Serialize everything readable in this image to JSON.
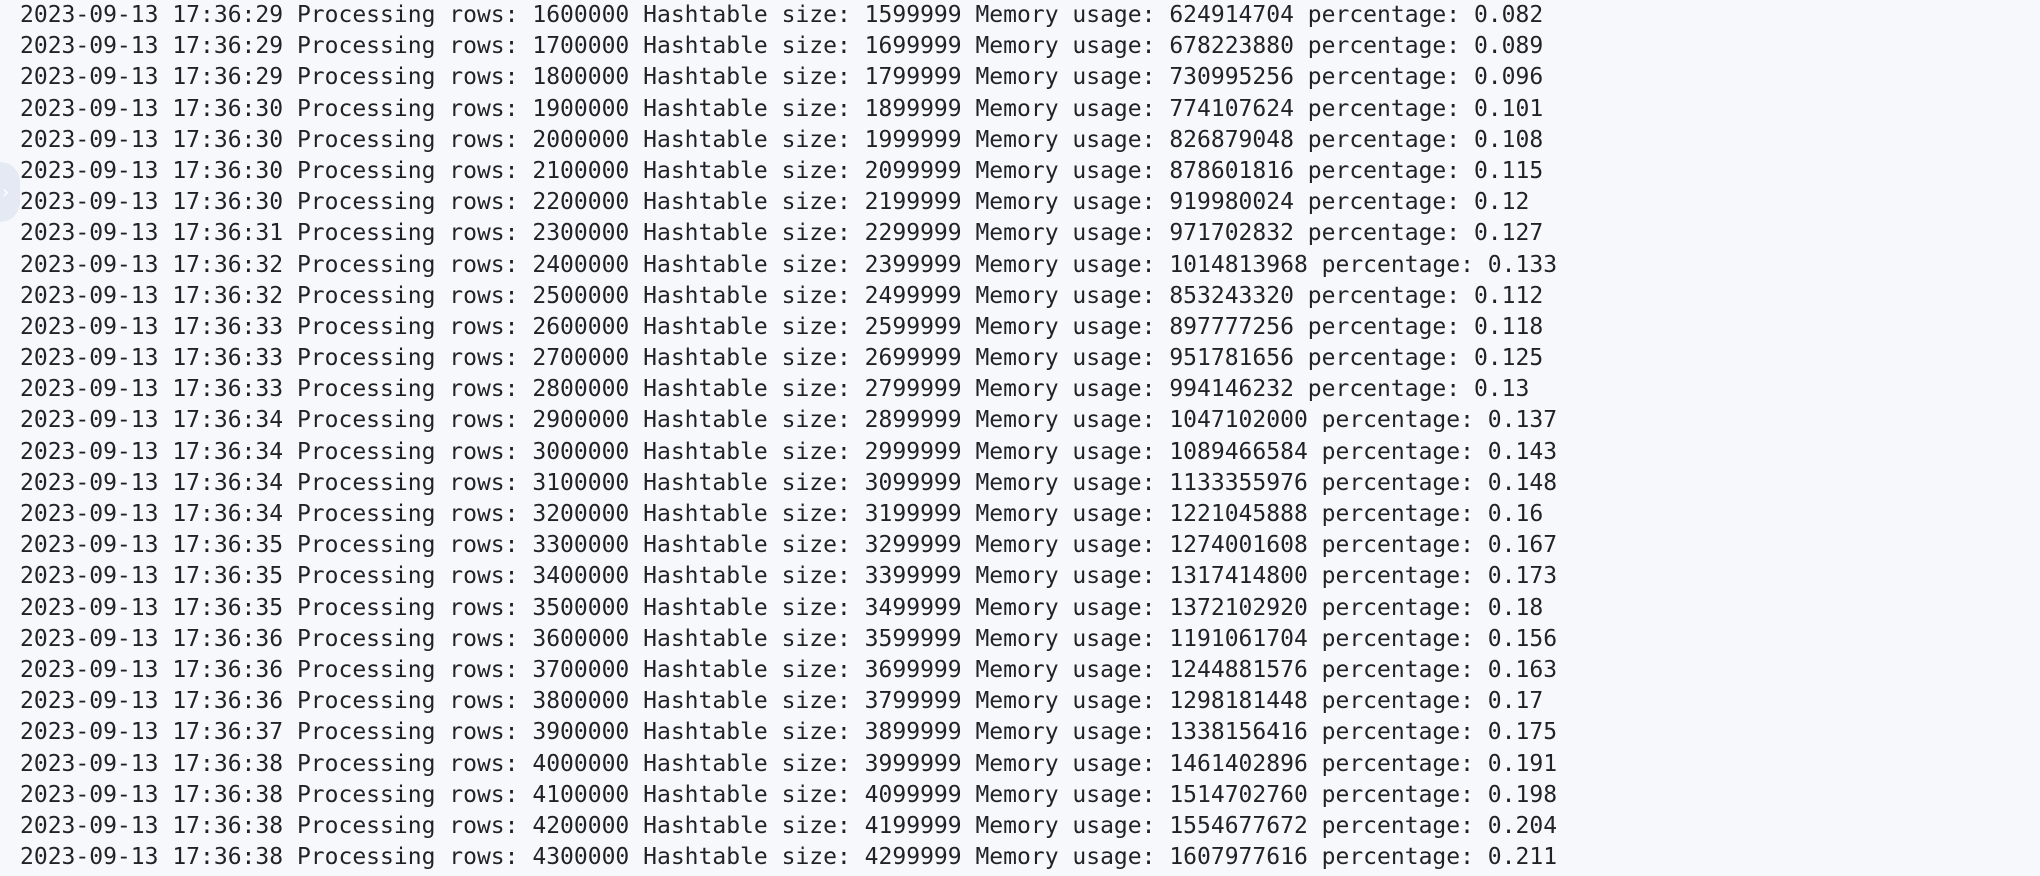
{
  "sidebar": {
    "toggle_icon": "chevron-right-icon",
    "toggle_glyph": "›"
  },
  "log": {
    "lines": [
      "2023-09-13 17:36:29 Processing rows: 1600000 Hashtable size: 1599999 Memory usage: 624914704 percentage: 0.082",
      "2023-09-13 17:36:29 Processing rows: 1700000 Hashtable size: 1699999 Memory usage: 678223880 percentage: 0.089",
      "2023-09-13 17:36:29 Processing rows: 1800000 Hashtable size: 1799999 Memory usage: 730995256 percentage: 0.096",
      "2023-09-13 17:36:30 Processing rows: 1900000 Hashtable size: 1899999 Memory usage: 774107624 percentage: 0.101",
      "2023-09-13 17:36:30 Processing rows: 2000000 Hashtable size: 1999999 Memory usage: 826879048 percentage: 0.108",
      "2023-09-13 17:36:30 Processing rows: 2100000 Hashtable size: 2099999 Memory usage: 878601816 percentage: 0.115",
      "2023-09-13 17:36:30 Processing rows: 2200000 Hashtable size: 2199999 Memory usage: 919980024 percentage: 0.12",
      "2023-09-13 17:36:31 Processing rows: 2300000 Hashtable size: 2299999 Memory usage: 971702832 percentage: 0.127",
      "2023-09-13 17:36:32 Processing rows: 2400000 Hashtable size: 2399999 Memory usage: 1014813968 percentage: 0.133",
      "2023-09-13 17:36:32 Processing rows: 2500000 Hashtable size: 2499999 Memory usage: 853243320 percentage: 0.112",
      "2023-09-13 17:36:33 Processing rows: 2600000 Hashtable size: 2599999 Memory usage: 897777256 percentage: 0.118",
      "2023-09-13 17:36:33 Processing rows: 2700000 Hashtable size: 2699999 Memory usage: 951781656 percentage: 0.125",
      "2023-09-13 17:36:33 Processing rows: 2800000 Hashtable size: 2799999 Memory usage: 994146232 percentage: 0.13",
      "2023-09-13 17:36:34 Processing rows: 2900000 Hashtable size: 2899999 Memory usage: 1047102000 percentage: 0.137",
      "2023-09-13 17:36:34 Processing rows: 3000000 Hashtable size: 2999999 Memory usage: 1089466584 percentage: 0.143",
      "2023-09-13 17:36:34 Processing rows: 3100000 Hashtable size: 3099999 Memory usage: 1133355976 percentage: 0.148",
      "2023-09-13 17:36:34 Processing rows: 3200000 Hashtable size: 3199999 Memory usage: 1221045888 percentage: 0.16",
      "2023-09-13 17:36:35 Processing rows: 3300000 Hashtable size: 3299999 Memory usage: 1274001608 percentage: 0.167",
      "2023-09-13 17:36:35 Processing rows: 3400000 Hashtable size: 3399999 Memory usage: 1317414800 percentage: 0.173",
      "2023-09-13 17:36:35 Processing rows: 3500000 Hashtable size: 3499999 Memory usage: 1372102920 percentage: 0.18",
      "2023-09-13 17:36:36 Processing rows: 3600000 Hashtable size: 3599999 Memory usage: 1191061704 percentage: 0.156",
      "2023-09-13 17:36:36 Processing rows: 3700000 Hashtable size: 3699999 Memory usage: 1244881576 percentage: 0.163",
      "2023-09-13 17:36:36 Processing rows: 3800000 Hashtable size: 3799999 Memory usage: 1298181448 percentage: 0.17",
      "2023-09-13 17:36:37 Processing rows: 3900000 Hashtable size: 3899999 Memory usage: 1338156416 percentage: 0.175",
      "2023-09-13 17:36:38 Processing rows: 4000000 Hashtable size: 3999999 Memory usage: 1461402896 percentage: 0.191",
      "2023-09-13 17:36:38 Processing rows: 4100000 Hashtable size: 4099999 Memory usage: 1514702760 percentage: 0.198",
      "2023-09-13 17:36:38 Processing rows: 4200000 Hashtable size: 4199999 Memory usage: 1554677672 percentage: 0.204",
      "2023-09-13 17:36:38 Processing rows: 4300000 Hashtable size: 4299999 Memory usage: 1607977616 percentage: 0.211"
    ]
  }
}
